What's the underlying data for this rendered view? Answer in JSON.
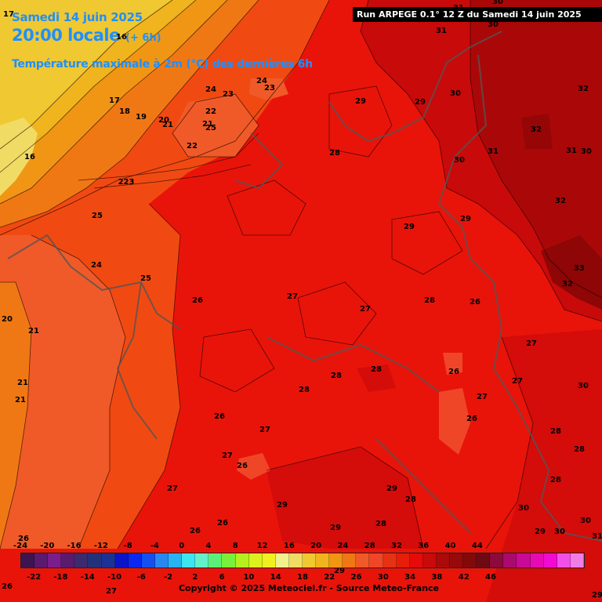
{
  "header": {
    "title": "Samedi 14 juin 2025",
    "time": "20:00 locale",
    "offset": "(+ 6h)",
    "variable": "Température maximale à 2m (°C) des dernières 6h",
    "run": "Run ARPEGE 0.1° 12 Z du Samedi 14 juin 2025"
  },
  "map_values": [
    {
      "t": "31"
    },
    {
      "t": "30"
    },
    {
      "t": "31"
    },
    {
      "t": "30"
    },
    {
      "t": "17"
    },
    {
      "t": "16"
    },
    {
      "t": "24"
    },
    {
      "t": "23"
    },
    {
      "t": "24"
    },
    {
      "t": "23"
    },
    {
      "t": "17"
    },
    {
      "t": "18"
    },
    {
      "t": "19"
    },
    {
      "t": "20"
    },
    {
      "t": "21"
    },
    {
      "t": "22"
    },
    {
      "t": "21"
    },
    {
      "t": "25"
    },
    {
      "t": "22"
    },
    {
      "t": "16"
    },
    {
      "t": "223"
    },
    {
      "t": "29"
    },
    {
      "t": "29"
    },
    {
      "t": "30"
    },
    {
      "t": "32"
    },
    {
      "t": "32"
    },
    {
      "t": "31"
    },
    {
      "t": "31"
    },
    {
      "t": "30"
    },
    {
      "t": "28"
    },
    {
      "t": "30"
    },
    {
      "t": "32"
    },
    {
      "t": "29"
    },
    {
      "t": "29"
    },
    {
      "t": "25"
    },
    {
      "t": "24"
    },
    {
      "t": "25"
    },
    {
      "t": "26"
    },
    {
      "t": "27"
    },
    {
      "t": "27"
    },
    {
      "t": "28"
    },
    {
      "t": "26"
    },
    {
      "t": "33"
    },
    {
      "t": "32"
    },
    {
      "t": "20"
    },
    {
      "t": "21"
    },
    {
      "t": "27"
    },
    {
      "t": "21"
    },
    {
      "t": "21"
    },
    {
      "t": "26"
    },
    {
      "t": "28"
    },
    {
      "t": "28"
    },
    {
      "t": "28"
    },
    {
      "t": "27"
    },
    {
      "t": "30"
    },
    {
      "t": "26"
    },
    {
      "t": "27"
    },
    {
      "t": "26"
    },
    {
      "t": "27"
    },
    {
      "t": "28"
    },
    {
      "t": "28"
    },
    {
      "t": "27"
    },
    {
      "t": "26"
    },
    {
      "t": "28"
    },
    {
      "t": "27"
    },
    {
      "t": "29"
    },
    {
      "t": "28"
    },
    {
      "t": "29"
    },
    {
      "t": "26"
    },
    {
      "t": "26"
    },
    {
      "t": "29"
    },
    {
      "t": "28"
    },
    {
      "t": "30"
    },
    {
      "t": "29"
    },
    {
      "t": "30"
    },
    {
      "t": "30"
    },
    {
      "t": "31"
    },
    {
      "t": "26"
    },
    {
      "t": "26"
    },
    {
      "t": "27"
    },
    {
      "t": "29"
    },
    {
      "t": "29"
    }
  ],
  "legend": {
    "top_ticks": [
      "-24",
      "-20",
      "-16",
      "-12",
      "-8",
      "-4",
      "0",
      "4",
      "8",
      "12",
      "16",
      "20",
      "24",
      "28",
      "32",
      "36",
      "40",
      "44"
    ],
    "bottom_ticks": [
      "-22",
      "-18",
      "-14",
      "-10",
      "-6",
      "-2",
      "2",
      "6",
      "10",
      "14",
      "18",
      "22",
      "26",
      "30",
      "34",
      "38",
      "42",
      "46"
    ],
    "colors": [
      "#3c1450",
      "#5a1a6e",
      "#7a1e8c",
      "#5a1a6e",
      "#3c2a6e",
      "#22327a",
      "#1a3296",
      "#0a14c8",
      "#0a28f0",
      "#1450f0",
      "#2888f0",
      "#28b4f0",
      "#3ce6f0",
      "#64f0c8",
      "#5af078",
      "#78f03c",
      "#b4f01e",
      "#dcf01e",
      "#f0f01e",
      "#f0f08c",
      "#f0dc64",
      "#f0c832",
      "#f0b41e",
      "#f09614",
      "#f07814",
      "#f05a28",
      "#f04628",
      "#e63214",
      "#e61e0a",
      "#e60a0a",
      "#c80a0a",
      "#aa0a0a",
      "#960a0a",
      "#820a0a",
      "#6e0a14",
      "#8c0a3c",
      "#aa0a6e",
      "#c80a96",
      "#e60ab4",
      "#f00ad2",
      "#f050e6",
      "#f07ce6"
    ]
  },
  "copyright": "Copyright © 2025 Meteociel.fr - Source Meteo-France"
}
